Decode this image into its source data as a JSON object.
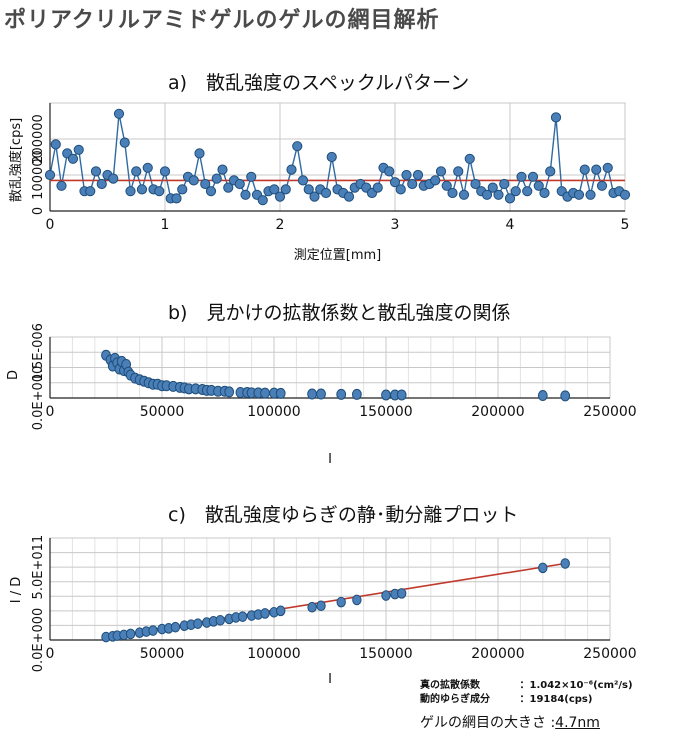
{
  "page_title": "ポリアクリルアミドゲルのゲルの網目解析",
  "chart_data": [
    {
      "id": "a",
      "type": "line",
      "title": "a)　散乱強度のスペックルパターン",
      "xlabel": "測定位置[mm]",
      "ylabel": "散乱強度[cps]",
      "xlim": [
        0,
        5
      ],
      "ylim": [
        0,
        300000
      ],
      "xticks": [
        "0",
        "1",
        "2",
        "3",
        "4",
        "5"
      ],
      "yticks": [
        "0",
        "100000",
        "200000"
      ],
      "mean_line": 85000,
      "series_color": "#2e6aa3",
      "mean_color": "#c0392b",
      "x": [
        0.0,
        0.05,
        0.1,
        0.15,
        0.2,
        0.25,
        0.3,
        0.35,
        0.4,
        0.45,
        0.5,
        0.55,
        0.6,
        0.65,
        0.7,
        0.75,
        0.8,
        0.85,
        0.9,
        0.95,
        1.0,
        1.05,
        1.1,
        1.15,
        1.2,
        1.25,
        1.3,
        1.35,
        1.4,
        1.45,
        1.5,
        1.55,
        1.6,
        1.65,
        1.7,
        1.75,
        1.8,
        1.85,
        1.9,
        1.95,
        2.0,
        2.05,
        2.1,
        2.15,
        2.2,
        2.25,
        2.3,
        2.35,
        2.4,
        2.45,
        2.5,
        2.55,
        2.6,
        2.65,
        2.7,
        2.75,
        2.8,
        2.85,
        2.9,
        2.95,
        3.0,
        3.05,
        3.1,
        3.15,
        3.2,
        3.25,
        3.3,
        3.35,
        3.4,
        3.45,
        3.5,
        3.55,
        3.6,
        3.65,
        3.7,
        3.75,
        3.8,
        3.85,
        3.9,
        3.95,
        4.0,
        4.05,
        4.1,
        4.15,
        4.2,
        4.25,
        4.3,
        4.35,
        4.4,
        4.45,
        4.5,
        4.55,
        4.6,
        4.65,
        4.7,
        4.75,
        4.8,
        4.85,
        4.9,
        4.95,
        5.0
      ],
      "values": [
        100000,
        185000,
        70000,
        160000,
        145000,
        170000,
        55000,
        55000,
        110000,
        75000,
        100000,
        90000,
        270000,
        190000,
        55000,
        110000,
        60000,
        120000,
        60000,
        55000,
        110000,
        35000,
        35000,
        60000,
        95000,
        85000,
        160000,
        75000,
        55000,
        90000,
        115000,
        65000,
        85000,
        75000,
        45000,
        95000,
        45000,
        30000,
        55000,
        60000,
        40000,
        60000,
        115000,
        180000,
        85000,
        60000,
        40000,
        60000,
        50000,
        150000,
        60000,
        50000,
        40000,
        65000,
        75000,
        65000,
        50000,
        65000,
        120000,
        110000,
        80000,
        60000,
        100000,
        75000,
        100000,
        70000,
        75000,
        85000,
        110000,
        70000,
        50000,
        110000,
        45000,
        145000,
        75000,
        55000,
        45000,
        65000,
        45000,
        75000,
        35000,
        55000,
        95000,
        55000,
        95000,
        70000,
        50000,
        110000,
        260000,
        55000,
        40000,
        50000,
        45000,
        115000,
        45000,
        115000,
        70000,
        120000,
        50000,
        55000,
        45000
      ]
    },
    {
      "id": "b",
      "type": "scatter",
      "title": "b)　見かけの拡散係数と散乱強度の関係",
      "xlabel": "I",
      "ylabel": "D",
      "xlim": [
        0,
        250000
      ],
      "ylim": [
        0,
        2e-06
      ],
      "xticks": [
        "0",
        "50000",
        "100000",
        "150000",
        "200000",
        "250000"
      ],
      "yticks": [
        "0.0E+000",
        "1.5E-006"
      ],
      "series_color": "#2e6aa3",
      "points": [
        [
          25000,
          1.4e-06
        ],
        [
          27000,
          1.25e-06
        ],
        [
          28000,
          1.05e-06
        ],
        [
          29000,
          1.3e-06
        ],
        [
          30000,
          1.15e-06
        ],
        [
          31000,
          9.5e-07
        ],
        [
          32000,
          1.2e-06
        ],
        [
          33000,
          9e-07
        ],
        [
          34000,
          1.1e-06
        ],
        [
          35000,
          8.5e-07
        ],
        [
          36000,
          7.5e-07
        ],
        [
          38000,
          6.5e-07
        ],
        [
          40000,
          6e-07
        ],
        [
          42000,
          5.5e-07
        ],
        [
          44000,
          5e-07
        ],
        [
          46000,
          4.5e-07
        ],
        [
          48000,
          4.5e-07
        ],
        [
          50000,
          4e-07
        ],
        [
          52000,
          4e-07
        ],
        [
          55000,
          3.8e-07
        ],
        [
          58000,
          3.5e-07
        ],
        [
          60000,
          3.3e-07
        ],
        [
          62000,
          3e-07
        ],
        [
          65000,
          3e-07
        ],
        [
          68000,
          2.8e-07
        ],
        [
          70000,
          2.5e-07
        ],
        [
          72000,
          2.5e-07
        ],
        [
          75000,
          2.2e-07
        ],
        [
          78000,
          2.2e-07
        ],
        [
          80000,
          2e-07
        ],
        [
          85000,
          1.8e-07
        ],
        [
          88000,
          1.8e-07
        ],
        [
          90000,
          1.7e-07
        ],
        [
          93000,
          1.7e-07
        ],
        [
          96000,
          1.6e-07
        ],
        [
          100000,
          1.6e-07
        ],
        [
          103000,
          1.5e-07
        ],
        [
          117000,
          1.3e-07
        ],
        [
          121000,
          1.3e-07
        ],
        [
          130000,
          1.2e-07
        ],
        [
          137000,
          1.2e-07
        ],
        [
          150000,
          1e-07
        ],
        [
          154000,
          1e-07
        ],
        [
          157000,
          1e-07
        ],
        [
          220000,
          8e-08
        ],
        [
          230000,
          7e-08
        ]
      ]
    },
    {
      "id": "c",
      "type": "scatter",
      "title": "c)　散乱強度ゆらぎの静･動分離プロット",
      "xlabel": "I",
      "ylabel": "I / D",
      "xlim": [
        0,
        250000
      ],
      "ylim": [
        0,
        700000000000.0
      ],
      "xticks": [
        "0",
        "50000",
        "100000",
        "150000",
        "200000",
        "250000"
      ],
      "yticks": [
        "0.0E+000",
        "5.0E+011"
      ],
      "series_color": "#2e6aa3",
      "fit_color": "#c0392b",
      "fit": [
        [
          24000,
          18000000000.0
        ],
        [
          232000,
          530000000000.0
        ]
      ],
      "points": [
        [
          25000,
          20000000000.0
        ],
        [
          28000,
          25000000000.0
        ],
        [
          30000,
          30000000000.0
        ],
        [
          33000,
          35000000000.0
        ],
        [
          36000,
          42000000000.0
        ],
        [
          40000,
          50000000000.0
        ],
        [
          43000,
          58000000000.0
        ],
        [
          46000,
          65000000000.0
        ],
        [
          50000,
          75000000000.0
        ],
        [
          53000,
          80000000000.0
        ],
        [
          56000,
          88000000000.0
        ],
        [
          60000,
          98000000000.0
        ],
        [
          63000,
          105000000000.0
        ],
        [
          66000,
          112000000000.0
        ],
        [
          70000,
          120000000000.0
        ],
        [
          73000,
          128000000000.0
        ],
        [
          76000,
          135000000000.0
        ],
        [
          80000,
          145000000000.0
        ],
        [
          83000,
          155000000000.0
        ],
        [
          86000,
          160000000000.0
        ],
        [
          90000,
          168000000000.0
        ],
        [
          93000,
          175000000000.0
        ],
        [
          96000,
          182000000000.0
        ],
        [
          100000,
          190000000000.0
        ],
        [
          103000,
          200000000000.0
        ],
        [
          117000,
          225000000000.0
        ],
        [
          121000,
          235000000000.0
        ],
        [
          130000,
          260000000000.0
        ],
        [
          137000,
          275000000000.0
        ],
        [
          150000,
          305000000000.0
        ],
        [
          154000,
          315000000000.0
        ],
        [
          157000,
          320000000000.0
        ],
        [
          220000,
          495000000000.0
        ],
        [
          230000,
          525000000000.0
        ]
      ]
    }
  ],
  "results": {
    "true_diffusion_label": "真の拡散係数",
    "true_diffusion_value": "：1.042×10⁻⁶(cm²/s)",
    "dynamic_label": "動的ゆらぎ成分",
    "dynamic_value": "：19184(cps)",
    "mesh_label": "ゲルの網目の大きさ",
    "mesh_value": "4.7nm"
  }
}
